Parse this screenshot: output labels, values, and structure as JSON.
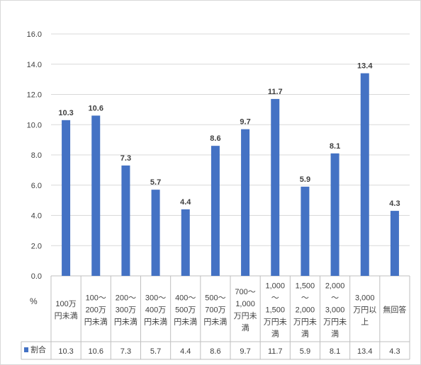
{
  "chart_data": {
    "type": "bar",
    "title": "",
    "ylabel": "",
    "unit_label": "%",
    "ylim": [
      0,
      16
    ],
    "yticks": [
      "0.0",
      "2.0",
      "4.0",
      "6.0",
      "8.0",
      "10.0",
      "12.0",
      "14.0",
      "16.0"
    ],
    "grid": true,
    "legend_position": "table-row",
    "categories": [
      [
        "100万",
        "円未満"
      ],
      [
        "100～",
        "200万",
        "円未満"
      ],
      [
        "200～",
        "300万",
        "円未満"
      ],
      [
        "300～",
        "400万",
        "円未満"
      ],
      [
        "400～",
        "500万",
        "円未満"
      ],
      [
        "500～",
        "700万",
        "円未満"
      ],
      [
        "700～",
        "1,000",
        "万円未",
        "満"
      ],
      [
        "1,000",
        "～",
        "1,500",
        "万円未",
        "満"
      ],
      [
        "1,500",
        "～",
        "2,000",
        "万円未",
        "満"
      ],
      [
        "2,000",
        "～",
        "3,000",
        "万円未",
        "満"
      ],
      [
        "3,000",
        "万円以",
        "上"
      ],
      [
        "無回答"
      ]
    ],
    "series": [
      {
        "name": "割合",
        "color": "#4472c4",
        "values": [
          10.3,
          10.6,
          7.3,
          5.7,
          4.4,
          8.6,
          9.7,
          11.7,
          5.9,
          8.1,
          13.4,
          4.3
        ],
        "labels": [
          "10.3",
          "10.6",
          "7.3",
          "5.7",
          "4.4",
          "8.6",
          "9.7",
          "11.7",
          "5.9",
          "8.1",
          "13.4",
          "4.3"
        ]
      }
    ]
  }
}
